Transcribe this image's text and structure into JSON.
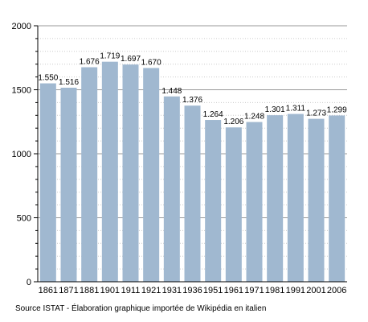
{
  "chart_data": {
    "type": "bar",
    "categories": [
      "1861",
      "1871",
      "1881",
      "1901",
      "1911",
      "1921",
      "1931",
      "1936",
      "1951",
      "1961",
      "1971",
      "1981",
      "1991",
      "2001",
      "2006"
    ],
    "values": [
      1550,
      1516,
      1676,
      1719,
      1697,
      1670,
      1448,
      1376,
      1264,
      1206,
      1248,
      1301,
      1311,
      1273,
      1299
    ],
    "data_labels": [
      "1.550",
      "1.516",
      "1.676",
      "1.719",
      "1.697",
      "1.670",
      "1.448",
      "1.376",
      "1.264",
      "1.206",
      "1.248",
      "1.301",
      "1.311",
      "1.273",
      "1.299"
    ],
    "ylim": [
      0,
      2000
    ],
    "yticks": [
      "0",
      "500",
      "1000",
      "1500",
      "2000"
    ],
    "ytick_values": [
      0,
      500,
      1000,
      1500,
      2000
    ],
    "grid": true,
    "bar_color": "#a0b8d0",
    "grid_color": "#cccccc"
  },
  "source_note": "Source ISTAT - Élaboration graphique importée de Wikipédia en italien"
}
